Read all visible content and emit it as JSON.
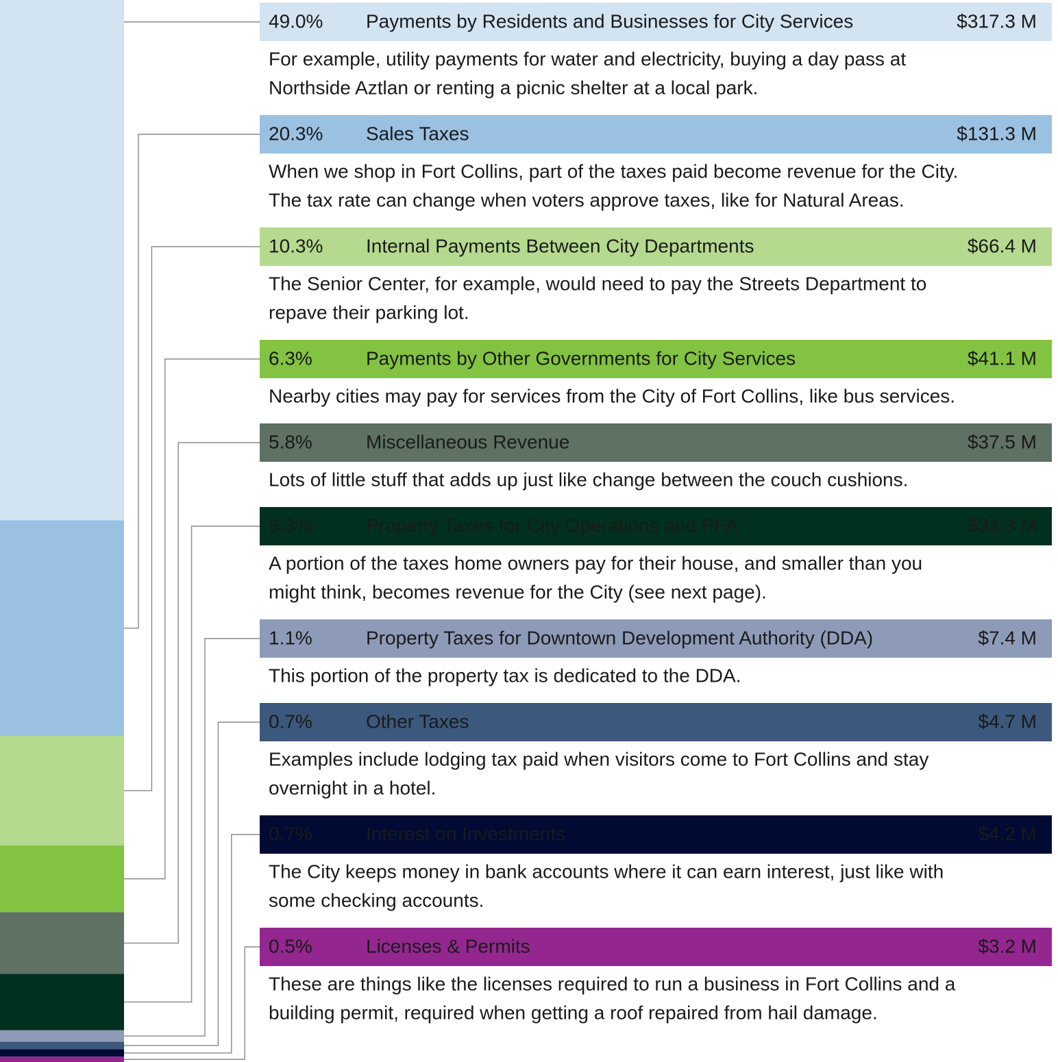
{
  "chart_data": {
    "type": "stacked-bar",
    "categories": [
      "Payments by Residents and Businesses for City Services",
      "Sales Taxes",
      "Internal Payments Between City Departments",
      "Payments by Other Governments for City Services",
      "Miscellaneous Revenue",
      "Property Taxes for City Operations and PFA",
      "Property Taxes for Downtown Development Authority (DDA)",
      "Other Taxes",
      "Interest on Investments",
      "Licenses & Permits"
    ],
    "values": [
      49.0,
      20.3,
      10.3,
      6.3,
      5.8,
      5.3,
      1.1,
      0.7,
      0.7,
      0.5
    ],
    "value_labels": [
      "49.0%",
      "20.3%",
      "10.3%",
      "6.3%",
      "5.8%",
      "5.3%",
      "1.1%",
      "0.7%",
      "0.7%",
      "0.5%"
    ],
    "amount_labels": [
      "$317.3 M",
      "$131.3 M",
      "$66.4 M",
      "$41.1 M",
      "$37.5 M",
      "$34.3 M",
      "$7.4 M",
      "$4.7 M",
      "$4.2 M",
      "$3.2 M"
    ],
    "descriptions": [
      [
        "For example, utility payments for water and electricity, buying a day pass at",
        "Northside Aztlan or renting a picnic shelter at a local park."
      ],
      [
        "When we shop in Fort Collins, part of the taxes paid become revenue for the City.",
        "The tax rate can change when voters approve taxes, like for Natural Areas."
      ],
      [
        "The Senior Center, for example, would need to pay the Streets Department to",
        "repave their parking lot."
      ],
      [
        "Nearby cities may pay for services from the City of Fort Collins, like bus services."
      ],
      [
        "Lots of little stuff that adds up just like change between the couch cushions."
      ],
      [
        "A portion of the taxes home owners pay for their house, and smaller than you",
        "might think, becomes revenue for the City (see next page)."
      ],
      [
        "This portion of the property tax is dedicated to the DDA."
      ],
      [
        "Examples include lodging tax paid when visitors come to Fort Collins and stay",
        "overnight in a hotel."
      ],
      [
        "The City keeps money in bank accounts where it can earn interest, just like with",
        "some checking accounts."
      ],
      [
        "These are things like the licenses required to run a business in Fort Collins and a",
        "building permit, required when getting a roof repaired from hail damage."
      ]
    ],
    "colors": [
      "#d2e3f1",
      "#9bc1e2",
      "#b5da8f",
      "#82c341",
      "#5e7163",
      "#00301f",
      "#8e9bb8",
      "#3c587c",
      "#000a33",
      "#93278f"
    ],
    "header_text_colors": [
      "#111111",
      "#111111",
      "#111111",
      "#111111",
      "#ffffff",
      "#ffffff",
      "#111111",
      "#ffffff",
      "#ffffff",
      "#ffffff"
    ]
  }
}
